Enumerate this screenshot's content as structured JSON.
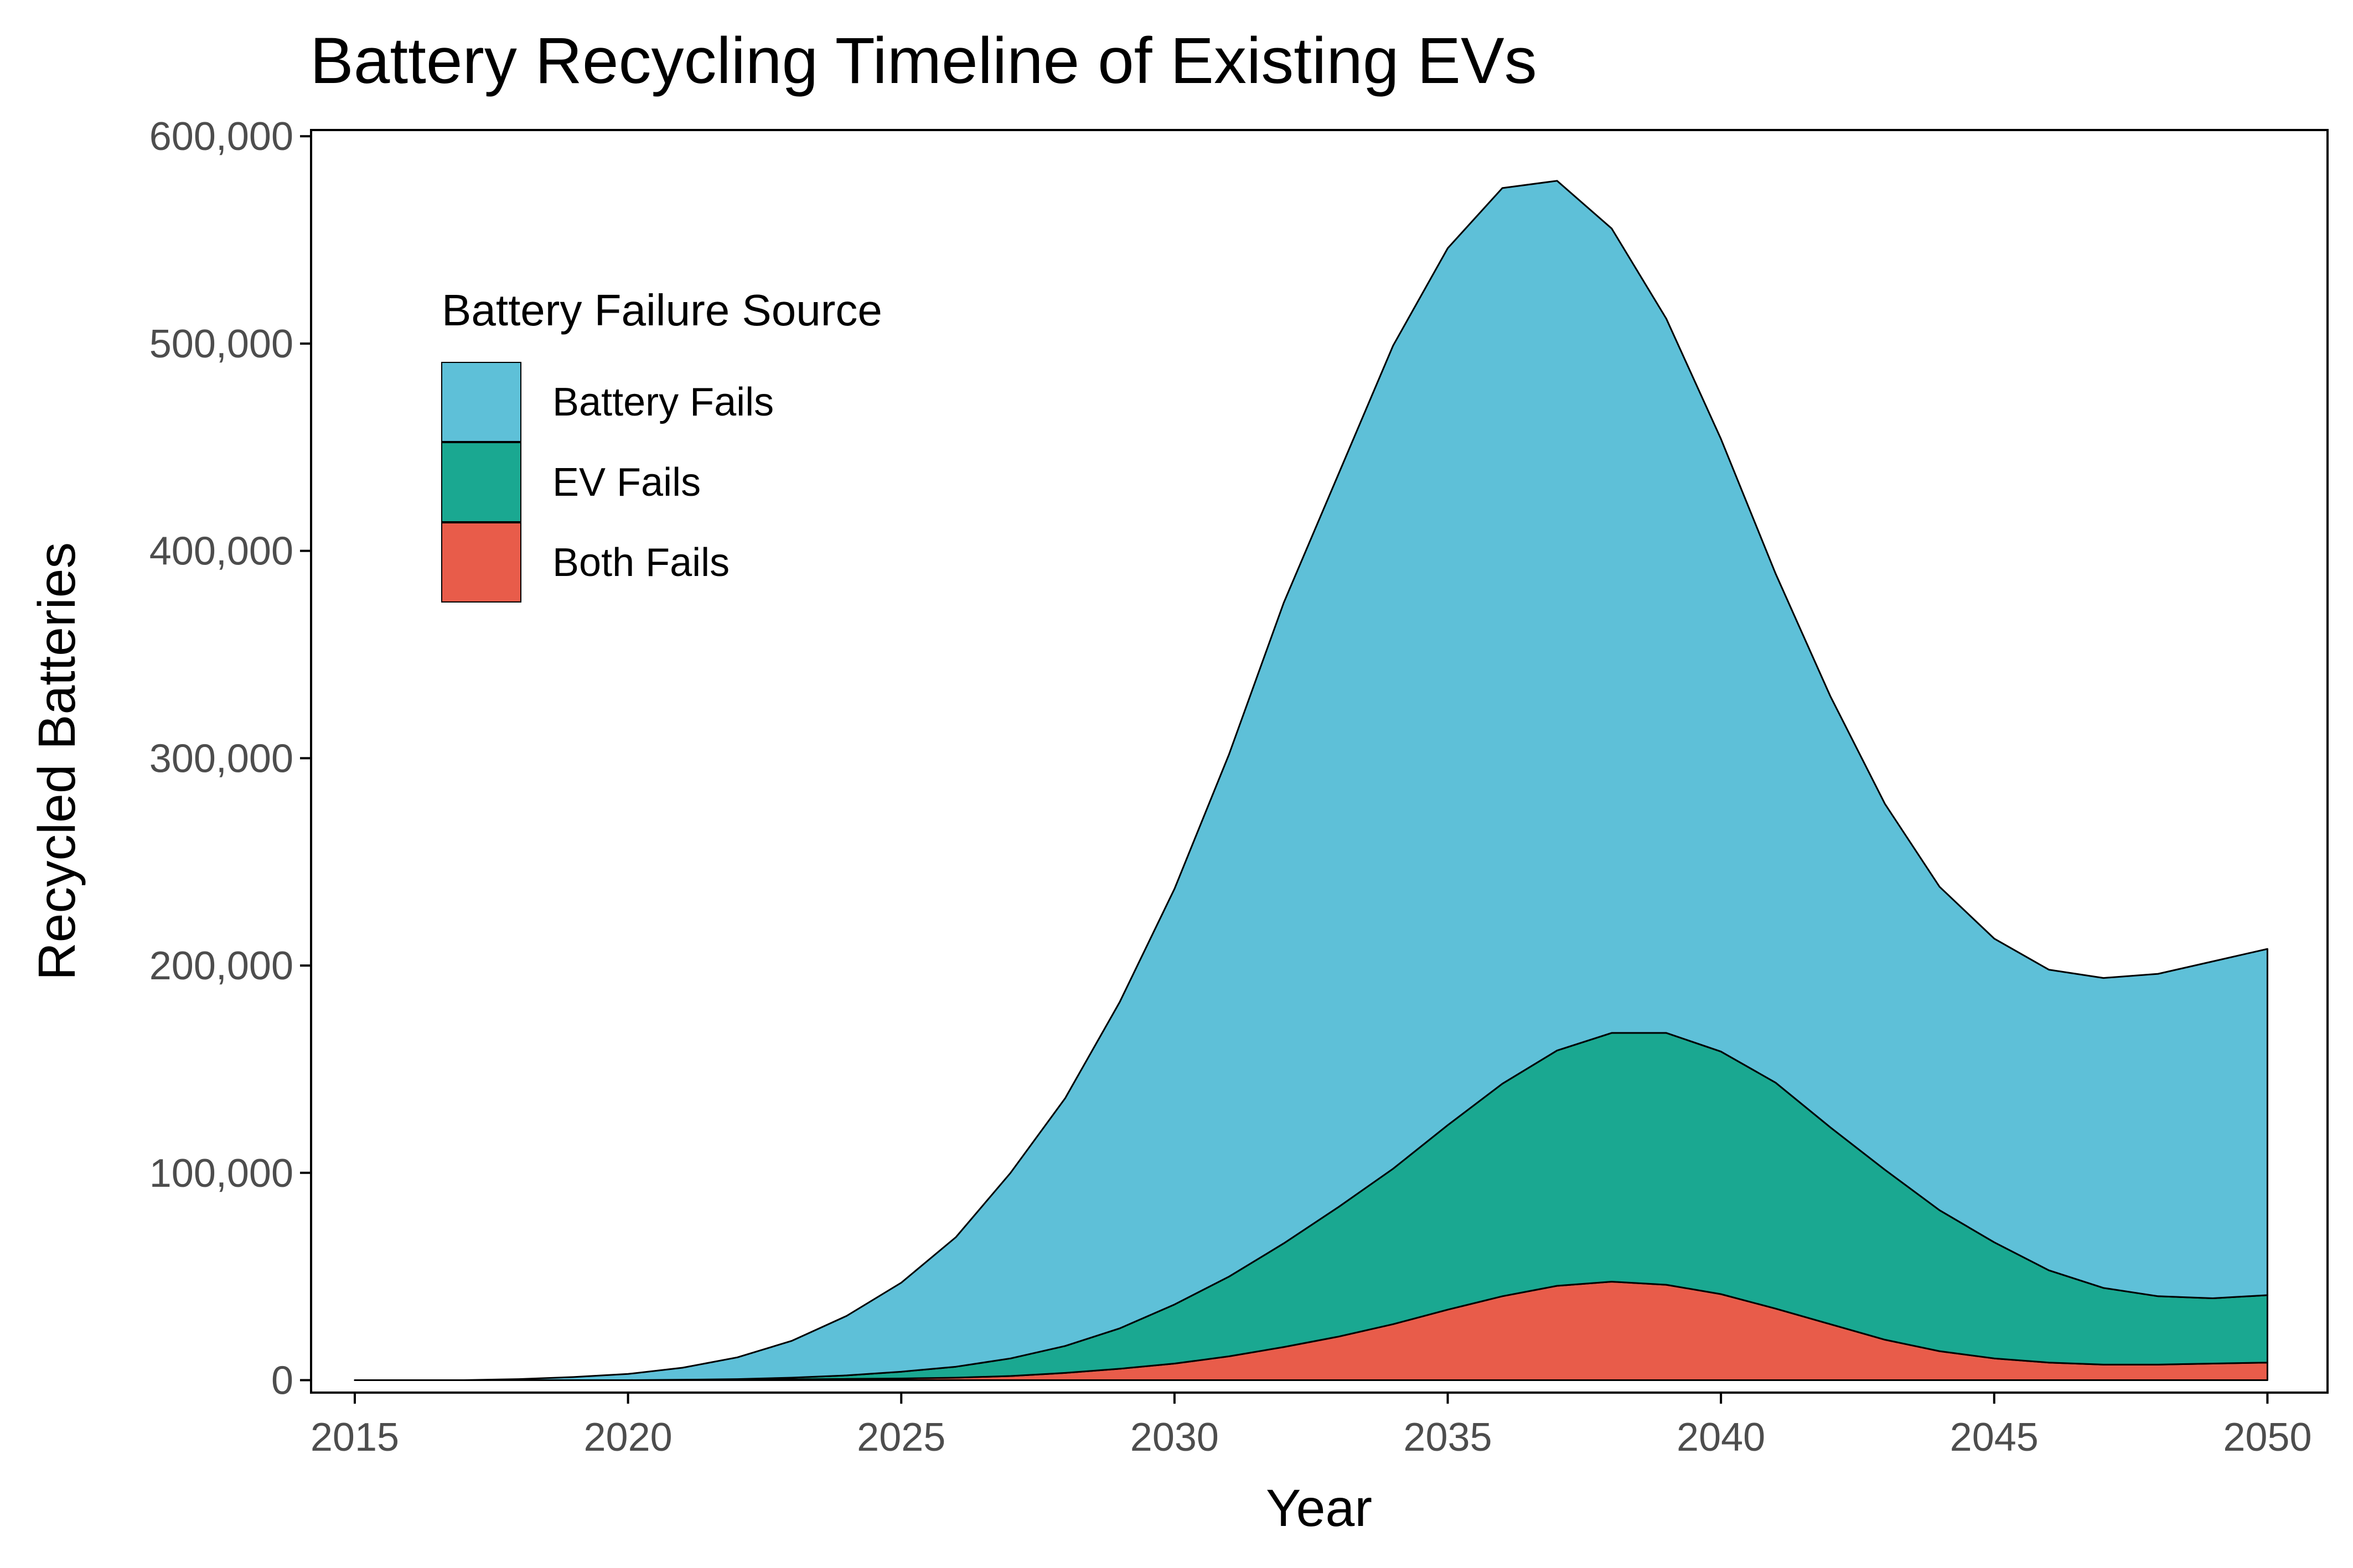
{
  "chart_data": {
    "type": "area",
    "stacked": true,
    "title": "Battery Recycling Timeline of Existing EVs",
    "xlabel": "Year",
    "ylabel": "Recycled Batteries",
    "xlim": [
      2014.2,
      2051.1
    ],
    "ylim": [
      -6000,
      603000
    ],
    "x_ticks": [
      2015,
      2020,
      2025,
      2030,
      2035,
      2040,
      2045,
      2050
    ],
    "x_tick_labels": [
      "2015",
      "2020",
      "2025",
      "2030",
      "2035",
      "2040",
      "2045",
      "2050"
    ],
    "y_ticks": [
      0,
      100000,
      200000,
      300000,
      400000,
      500000,
      600000
    ],
    "y_tick_labels": [
      "0",
      "100,000",
      "200,000",
      "300,000",
      "400,000",
      "500,000",
      "600,000"
    ],
    "grid": false,
    "legend": {
      "title": "Battery Failure Source",
      "placement": "top-left"
    },
    "x": [
      2015,
      2016,
      2017,
      2018,
      2019,
      2020,
      2021,
      2022,
      2023,
      2024,
      2025,
      2026,
      2027,
      2028,
      2029,
      2030,
      2031,
      2032,
      2033,
      2034,
      2035,
      2036,
      2037,
      2038,
      2039,
      2040,
      2041,
      2042,
      2043,
      2044,
      2045,
      2046,
      2047,
      2048,
      2049,
      2050
    ],
    "series": [
      {
        "name": "Both Fails",
        "color": "#e85c4a",
        "values": [
          0,
          0,
          0,
          0,
          0,
          0,
          100,
          200,
          400,
          600,
          800,
          1200,
          2000,
          3500,
          5500,
          8000,
          11500,
          16000,
          21000,
          27000,
          34000,
          40500,
          45500,
          47500,
          46000,
          41500,
          34500,
          27000,
          19500,
          14000,
          10500,
          8500,
          7500,
          7500,
          8000,
          8500
        ]
      },
      {
        "name": "EV Fails",
        "color": "#1aa891",
        "values": [
          0,
          0,
          0,
          0,
          0,
          0,
          100,
          300,
          800,
          1700,
          3300,
          5300,
          8500,
          13000,
          19500,
          28500,
          38500,
          50000,
          62500,
          75000,
          89000,
          102500,
          113500,
          120000,
          121500,
          117000,
          109000,
          95000,
          82000,
          68000,
          56000,
          44500,
          37000,
          33000,
          31500,
          32500
        ]
      },
      {
        "name": "Battery Fails",
        "color": "#5ec0d8",
        "values": [
          0,
          0,
          0,
          500,
          1500,
          3000,
          5800,
          10500,
          17800,
          28700,
          42900,
          62500,
          89500,
          119500,
          157500,
          200500,
          252000,
          309000,
          353500,
          397000,
          423000,
          432000,
          419500,
          388000,
          344500,
          295500,
          245500,
          208000,
          176500,
          156000,
          146500,
          145000,
          149500,
          155500,
          162500,
          167000
        ]
      }
    ]
  }
}
